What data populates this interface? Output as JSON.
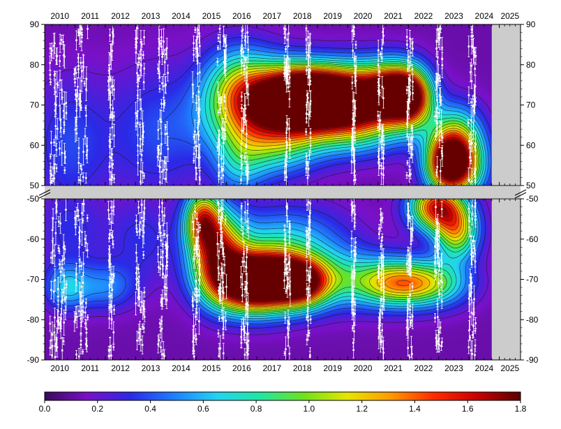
{
  "chart_data": {
    "type": "heatmap",
    "title": "",
    "xlabel": "",
    "ylabel": "",
    "x": {
      "ticks": [
        "2010",
        "2011",
        "2012",
        "2013",
        "2014",
        "2015",
        "2016",
        "2017",
        "2018",
        "2019",
        "2020",
        "2021",
        "2022",
        "2023",
        "2024",
        "2025"
      ],
      "range": [
        2010,
        2025.7
      ],
      "data_end": 2024.75
    },
    "y_upper": {
      "range": [
        50,
        90
      ],
      "ticks": [
        "90",
        "80",
        "70",
        "60",
        "50"
      ],
      "tick_values": [
        90,
        80,
        70,
        60,
        50
      ]
    },
    "y_lower": {
      "range": [
        -90,
        -50
      ],
      "ticks": [
        "-50",
        "-60",
        "-70",
        "-80",
        "-90"
      ],
      "tick_values": [
        -50,
        -60,
        -70,
        -80,
        -90
      ]
    },
    "colorbar": {
      "range": [
        0.0,
        1.8
      ],
      "ticks": [
        "0.0",
        "0.2",
        "0.4",
        "0.6",
        "0.8",
        "1.0",
        "1.2",
        "1.4",
        "1.6",
        "1.8"
      ],
      "colors": [
        "#3a0a5a",
        "#7a10c8",
        "#2a2ae6",
        "#1f7fff",
        "#22d4f0",
        "#22e6a0",
        "#6fe21c",
        "#e6e600",
        "#ff9900",
        "#ff2a00",
        "#c80000",
        "#5a0000"
      ]
    },
    "upper_blobs": [
      {
        "x": 2018.3,
        "y": 72,
        "sx": 0.9,
        "sy": 5,
        "v": 1.45
      },
      {
        "x": 2019.3,
        "y": 72,
        "sx": 0.9,
        "sy": 5,
        "v": 1.45
      },
      {
        "x": 2017.2,
        "y": 70,
        "sx": 1.2,
        "sy": 7,
        "v": 0.95
      },
      {
        "x": 2020.4,
        "y": 71,
        "sx": 0.8,
        "sy": 6,
        "v": 1.1
      },
      {
        "x": 2021.4,
        "y": 73,
        "sx": 0.6,
        "sy": 5,
        "v": 1.35
      },
      {
        "x": 2022.1,
        "y": 72,
        "sx": 0.5,
        "sy": 5,
        "v": 1.4
      },
      {
        "x": 2019.0,
        "y": 64,
        "sx": 2.0,
        "sy": 5,
        "v": 0.55
      },
      {
        "x": 2016.4,
        "y": 75,
        "sx": 0.8,
        "sy": 7,
        "v": 0.55
      },
      {
        "x": 2023.3,
        "y": 55,
        "sx": 0.5,
        "sy": 5,
        "v": 1.55
      },
      {
        "x": 2023.6,
        "y": 61,
        "sx": 0.6,
        "sy": 6,
        "v": 0.85
      },
      {
        "x": 2024.0,
        "y": 54,
        "sx": 0.5,
        "sy": 5,
        "v": 0.5
      },
      {
        "x": 2016.4,
        "y": 55,
        "sx": 0.6,
        "sy": 6,
        "v": 0.35
      },
      {
        "x": 2010.8,
        "y": 60,
        "sx": 0.9,
        "sy": 12,
        "v": 0.25
      },
      {
        "x": 2013.7,
        "y": 63,
        "sx": 1.2,
        "sy": 12,
        "v": 0.25
      },
      {
        "x": 2017.5,
        "y": 58,
        "sx": 1.0,
        "sy": 5,
        "v": 0.35
      }
    ],
    "lower_blobs": [
      {
        "x": 2016.6,
        "y": -71,
        "sx": 0.9,
        "sy": 5,
        "v": 1.4
      },
      {
        "x": 2017.5,
        "y": -70,
        "sx": 0.9,
        "sy": 5,
        "v": 1.35
      },
      {
        "x": 2015.7,
        "y": -63,
        "sx": 0.6,
        "sy": 7,
        "v": 1.25
      },
      {
        "x": 2015.2,
        "y": -55,
        "sx": 0.4,
        "sy": 5,
        "v": 1.05
      },
      {
        "x": 2018.5,
        "y": -71,
        "sx": 0.6,
        "sy": 4,
        "v": 0.95
      },
      {
        "x": 2019.6,
        "y": -70,
        "sx": 1.4,
        "sy": 5,
        "v": 0.6
      },
      {
        "x": 2021.7,
        "y": -71,
        "sx": 0.9,
        "sy": 4,
        "v": 0.95
      },
      {
        "x": 2023.0,
        "y": -71,
        "sx": 0.8,
        "sy": 4,
        "v": 0.55
      },
      {
        "x": 2022.9,
        "y": -52,
        "sx": 0.6,
        "sy": 4,
        "v": 1.35
      },
      {
        "x": 2023.6,
        "y": -58,
        "sx": 0.5,
        "sy": 5,
        "v": 1.0
      },
      {
        "x": 2018.0,
        "y": -60,
        "sx": 1.4,
        "sy": 6,
        "v": 0.45
      },
      {
        "x": 2010.7,
        "y": -72,
        "sx": 0.5,
        "sy": 4,
        "v": 0.45
      },
      {
        "x": 2012.0,
        "y": -72,
        "sx": 0.7,
        "sy": 4,
        "v": 0.35
      },
      {
        "x": 2010.8,
        "y": -57,
        "sx": 0.8,
        "sy": 8,
        "v": 0.2
      },
      {
        "x": 2013.2,
        "y": -60,
        "sx": 0.9,
        "sy": 8,
        "v": 0.2
      }
    ],
    "observation_columns": [
      {
        "year": 2010.45,
        "width": 0.55
      },
      {
        "year": 2011.2,
        "width": 0.45
      },
      {
        "year": 2012.2,
        "width": 0.2
      },
      {
        "year": 2013.15,
        "width": 0.3
      },
      {
        "year": 2013.9,
        "width": 0.35
      },
      {
        "year": 2015.0,
        "width": 0.25
      },
      {
        "year": 2015.85,
        "width": 0.3
      },
      {
        "year": 2016.6,
        "width": 0.25
      },
      {
        "year": 2018.0,
        "width": 0.2
      },
      {
        "year": 2018.7,
        "width": 0.15
      },
      {
        "year": 2020.2,
        "width": 0.15
      },
      {
        "year": 2021.1,
        "width": 0.2
      },
      {
        "year": 2022.05,
        "width": 0.2
      },
      {
        "year": 2023.0,
        "width": 0.25
      },
      {
        "year": 2024.1,
        "width": 0.25
      }
    ]
  }
}
